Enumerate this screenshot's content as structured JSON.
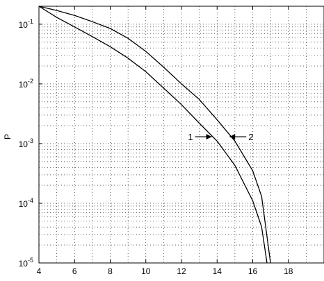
{
  "chart_data": {
    "type": "line",
    "ylabel": "P",
    "xlabel": "",
    "xlim": [
      4,
      20
    ],
    "ylim": [
      1e-05,
      0.2
    ],
    "yscale": "log",
    "grid": true,
    "x_ticks": [
      4,
      6,
      8,
      10,
      12,
      14,
      16,
      18
    ],
    "y_ticks": [
      {
        "value": 0.1,
        "label_base": "10",
        "label_exp": "-1"
      },
      {
        "value": 0.01,
        "label_base": "10",
        "label_exp": "-2"
      },
      {
        "value": 0.001,
        "label_base": "10",
        "label_exp": "-3"
      },
      {
        "value": 0.0001,
        "label_base": "10",
        "label_exp": "-4"
      },
      {
        "value": 1e-05,
        "label_base": "10",
        "label_exp": "-5"
      }
    ],
    "series": [
      {
        "x": [
          4,
          5,
          6,
          7,
          8,
          9,
          10,
          11,
          12,
          13,
          14,
          15,
          16,
          16.5,
          16.8
        ],
        "y": [
          0.2,
          0.13,
          0.09,
          0.062,
          0.042,
          0.027,
          0.016,
          0.0085,
          0.0045,
          0.0022,
          0.0011,
          0.00043,
          0.00011,
          4e-05,
          1e-05
        ]
      },
      {
        "x": [
          4,
          5,
          6,
          7,
          8,
          9,
          10,
          11,
          12,
          13,
          14,
          15,
          16,
          16.5,
          17
        ],
        "y": [
          0.2,
          0.17,
          0.14,
          0.11,
          0.085,
          0.058,
          0.035,
          0.019,
          0.01,
          0.0055,
          0.0025,
          0.0011,
          0.00035,
          0.00013,
          1e-05
        ]
      }
    ],
    "annotations": [
      {
        "text": "1",
        "x": 13.7,
        "y": 0.0013,
        "direction": "right"
      },
      {
        "text": "2",
        "x": 14.7,
        "y": 0.0013,
        "direction": "left"
      }
    ]
  }
}
